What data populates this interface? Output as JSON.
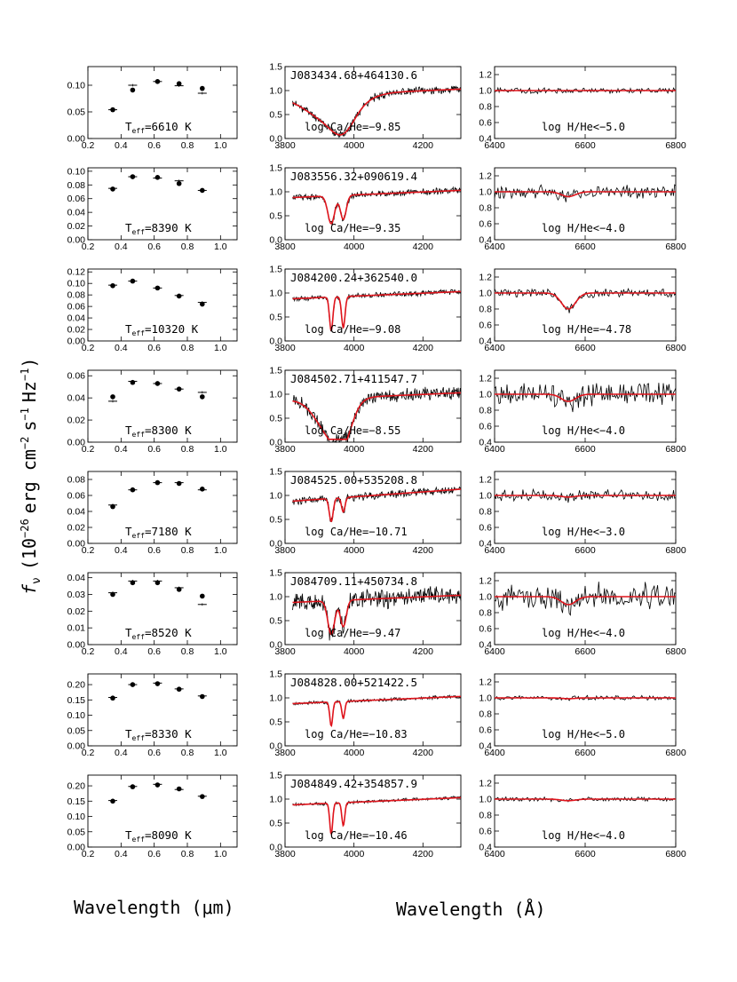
{
  "figure": {
    "ylabel_main": "f",
    "ylabel_sub": "ν",
    "ylabel_rest": "(10",
    "ylabel_exp1": "−26",
    "ylabel_mid1": "erg cm",
    "ylabel_exp2": "−2",
    "ylabel_mid2": "s",
    "ylabel_exp3": "−1",
    "ylabel_mid3": "Hz",
    "ylabel_exp4": "−1",
    "ylabel_end": ")",
    "xlabel_left": "Wavelength (μm)",
    "xlabel_right": "Wavelength (Å)",
    "series_color": "#000000",
    "model_color": "#e0141c"
  },
  "chart_data": [
    {
      "type": "scatter",
      "panel": "photometry",
      "label_prefix": "T",
      "label_sub": "eff",
      "label_value": "=6610 K",
      "x": [
        0.35,
        0.47,
        0.62,
        0.75,
        0.89
      ],
      "y_obs": [
        0.054,
        0.091,
        0.107,
        0.103,
        0.094
      ],
      "y_model": [
        0.054,
        0.1,
        0.107,
        0.099,
        0.085
      ],
      "xlim": [
        0.2,
        1.1
      ],
      "ylim": [
        0.0,
        0.135
      ],
      "xticks": [
        "0.2",
        "0.4",
        "0.6",
        "0.8",
        "1.0"
      ],
      "xtick_vals": [
        0.2,
        0.4,
        0.6,
        0.8,
        1.0
      ],
      "yticks": [
        "0.00",
        "0.05",
        "0.10"
      ],
      "ytick_vals": [
        0.0,
        0.05,
        0.1
      ]
    },
    {
      "type": "line",
      "panel": "calcium",
      "title": "J083434.68+464130.6",
      "label": "log Ca/He=−9.85",
      "xlim": [
        3800,
        4310
      ],
      "ylim": [
        0.0,
        1.5
      ],
      "xticks": [
        "3800",
        "4000",
        "4200"
      ],
      "xtick_vals": [
        3800,
        4000,
        4200
      ],
      "yticks": [
        "0.0",
        "0.5",
        "1.0",
        "1.5"
      ],
      "ytick_vals": [
        0,
        0.5,
        1.0,
        1.5
      ],
      "lines": [
        [
          3934,
          0.55,
          95
        ],
        [
          3969,
          0.35,
          45
        ]
      ],
      "noise": 0.06,
      "blend": true,
      "seed": 11
    },
    {
      "type": "line",
      "panel": "hydrogen",
      "label": "log H/He<−5.0",
      "xlim": [
        6400,
        6800
      ],
      "ylim": [
        0.4,
        1.3
      ],
      "xticks": [
        "6400",
        "6600",
        "6800"
      ],
      "xtick_vals": [
        6400,
        6600,
        6800
      ],
      "yticks": [
        "0.4",
        "0.6",
        "0.8",
        "1.0",
        "1.2"
      ],
      "ytick_vals": [
        0.4,
        0.6,
        0.8,
        1.0,
        1.2
      ],
      "halpha": 0.0,
      "noise": 0.025,
      "seed": 21
    },
    {
      "type": "scatter",
      "panel": "photometry",
      "label_prefix": "T",
      "label_sub": "eff",
      "label_value": "=8390 K",
      "x": [
        0.35,
        0.47,
        0.62,
        0.75,
        0.89
      ],
      "y_obs": [
        0.074,
        0.092,
        0.091,
        0.082,
        0.072
      ],
      "y_model": [
        0.075,
        0.092,
        0.09,
        0.086,
        0.072
      ],
      "xlim": [
        0.2,
        1.1
      ],
      "ylim": [
        0.0,
        0.105
      ],
      "xticks": [
        "0.2",
        "0.4",
        "0.6",
        "0.8",
        "1.0"
      ],
      "xtick_vals": [
        0.2,
        0.4,
        0.6,
        0.8,
        1.0
      ],
      "yticks": [
        "0.00",
        "0.02",
        "0.04",
        "0.06",
        "0.08",
        "0.10"
      ],
      "ytick_vals": [
        0,
        0.02,
        0.04,
        0.06,
        0.08,
        0.1
      ]
    },
    {
      "type": "line",
      "panel": "calcium",
      "title": "J083556.32+090619.4",
      "label": "log Ca/He=−9.35",
      "xlim": [
        3800,
        4310
      ],
      "ylim": [
        0.0,
        1.5
      ],
      "xticks": [
        "3800",
        "4000",
        "4200"
      ],
      "xtick_vals": [
        3800,
        4000,
        4200
      ],
      "yticks": [
        "0.0",
        "0.5",
        "1.0",
        "1.5"
      ],
      "ytick_vals": [
        0,
        0.5,
        1.0,
        1.5
      ],
      "lines": [
        [
          3934,
          0.58,
          14
        ],
        [
          3969,
          0.5,
          12
        ]
      ],
      "noise": 0.05,
      "blend": false,
      "seed": 12
    },
    {
      "type": "line",
      "panel": "hydrogen",
      "label": "log H/He<−4.0",
      "xlim": [
        6400,
        6800
      ],
      "ylim": [
        0.4,
        1.3
      ],
      "xticks": [
        "6400",
        "6600",
        "6800"
      ],
      "xtick_vals": [
        6400,
        6600,
        6800
      ],
      "yticks": [
        "0.4",
        "0.6",
        "0.8",
        "1.0",
        "1.2"
      ],
      "ytick_vals": [
        0.4,
        0.6,
        0.8,
        1.0,
        1.2
      ],
      "halpha": 0.06,
      "noise": 0.06,
      "seed": 22
    },
    {
      "type": "scatter",
      "panel": "photometry",
      "label_prefix": "T",
      "label_sub": "eff",
      "label_value": "=10320 K",
      "x": [
        0.35,
        0.47,
        0.62,
        0.75,
        0.89
      ],
      "y_obs": [
        0.096,
        0.104,
        0.092,
        0.078,
        0.064
      ],
      "y_model": [
        0.097,
        0.104,
        0.092,
        0.079,
        0.067
      ],
      "xlim": [
        0.2,
        1.1
      ],
      "ylim": [
        0.0,
        0.125
      ],
      "xticks": [
        "0.2",
        "0.4",
        "0.6",
        "0.8",
        "1.0"
      ],
      "xtick_vals": [
        0.2,
        0.4,
        0.6,
        0.8,
        1.0
      ],
      "yticks": [
        "0.00",
        "0.02",
        "0.04",
        "0.06",
        "0.08",
        "0.10",
        "0.12"
      ],
      "ytick_vals": [
        0,
        0.02,
        0.04,
        0.06,
        0.08,
        0.1,
        0.12
      ]
    },
    {
      "type": "line",
      "panel": "calcium",
      "title": "J084200.24+362540.0",
      "label": "log Ca/He=−9.08",
      "xlim": [
        3800,
        4310
      ],
      "ylim": [
        0.0,
        1.5
      ],
      "xticks": [
        "3800",
        "4000",
        "4200"
      ],
      "xtick_vals": [
        3800,
        4000,
        4200
      ],
      "yticks": [
        "0.0",
        "0.5",
        "1.0",
        "1.5"
      ],
      "ytick_vals": [
        0,
        0.5,
        1.0,
        1.5
      ],
      "lines": [
        [
          3934,
          0.7,
          7
        ],
        [
          3969,
          0.65,
          7
        ]
      ],
      "noise": 0.04,
      "blend": false,
      "seed": 13
    },
    {
      "type": "line",
      "panel": "hydrogen",
      "label": "log H/He=−4.78",
      "xlim": [
        6400,
        6800
      ],
      "ylim": [
        0.4,
        1.3
      ],
      "xticks": [
        "6400",
        "6600",
        "6800"
      ],
      "xtick_vals": [
        6400,
        6600,
        6800
      ],
      "yticks": [
        "0.4",
        "0.6",
        "0.8",
        "1.0",
        "1.2"
      ],
      "ytick_vals": [
        0.4,
        0.6,
        0.8,
        1.0,
        1.2
      ],
      "halpha": 0.2,
      "noise": 0.04,
      "seed": 23
    },
    {
      "type": "scatter",
      "panel": "photometry",
      "label_prefix": "T",
      "label_sub": "eff",
      "label_value": "=8300 K",
      "x": [
        0.35,
        0.47,
        0.62,
        0.75,
        0.89
      ],
      "y_obs": [
        0.041,
        0.054,
        0.053,
        0.048,
        0.041
      ],
      "y_model": [
        0.037,
        0.055,
        0.053,
        0.048,
        0.045
      ],
      "xlim": [
        0.2,
        1.1
      ],
      "ylim": [
        0.0,
        0.065
      ],
      "xticks": [
        "0.2",
        "0.4",
        "0.6",
        "0.8",
        "1.0"
      ],
      "xtick_vals": [
        0.2,
        0.4,
        0.6,
        0.8,
        1.0
      ],
      "yticks": [
        "0.00",
        "0.02",
        "0.04",
        "0.06"
      ],
      "ytick_vals": [
        0,
        0.02,
        0.04,
        0.06
      ]
    },
    {
      "type": "line",
      "panel": "calcium",
      "title": "J084502.71+411547.7",
      "label": "log Ca/He=−8.55",
      "xlim": [
        3800,
        4310
      ],
      "ylim": [
        0.0,
        1.5
      ],
      "xticks": [
        "3800",
        "4000",
        "4200"
      ],
      "xtick_vals": [
        3800,
        4000,
        4200
      ],
      "yticks": [
        "0.0",
        "0.5",
        "1.0",
        "1.5"
      ],
      "ytick_vals": [
        0,
        0.5,
        1.0,
        1.5
      ],
      "lines": [
        [
          3934,
          0.75,
          60
        ],
        [
          3969,
          0.5,
          35
        ]
      ],
      "noise": 0.1,
      "blend": true,
      "seed": 14
    },
    {
      "type": "line",
      "panel": "hydrogen",
      "label": "log H/He<−4.0",
      "xlim": [
        6400,
        6800
      ],
      "ylim": [
        0.4,
        1.3
      ],
      "xticks": [
        "6400",
        "6600",
        "6800"
      ],
      "xtick_vals": [
        6400,
        6600,
        6800
      ],
      "yticks": [
        "0.4",
        "0.6",
        "0.8",
        "1.0",
        "1.2"
      ],
      "ytick_vals": [
        0.4,
        0.6,
        0.8,
        1.0,
        1.2
      ],
      "halpha": 0.09,
      "noise": 0.1,
      "seed": 24
    },
    {
      "type": "scatter",
      "panel": "photometry",
      "label_prefix": "T",
      "label_sub": "eff",
      "label_value": "=7180 K",
      "x": [
        0.35,
        0.47,
        0.62,
        0.75,
        0.89
      ],
      "y_obs": [
        0.046,
        0.067,
        0.076,
        0.075,
        0.068
      ],
      "y_model": [
        0.048,
        0.067,
        0.076,
        0.076,
        0.067
      ],
      "xlim": [
        0.2,
        1.1
      ],
      "ylim": [
        0.0,
        0.09
      ],
      "xticks": [
        "0.2",
        "0.4",
        "0.6",
        "0.8",
        "1.0"
      ],
      "xtick_vals": [
        0.2,
        0.4,
        0.6,
        0.8,
        1.0
      ],
      "yticks": [
        "0.00",
        "0.02",
        "0.04",
        "0.06",
        "0.08"
      ],
      "ytick_vals": [
        0,
        0.02,
        0.04,
        0.06,
        0.08
      ]
    },
    {
      "type": "line",
      "panel": "calcium",
      "title": "J084525.00+535208.8",
      "label": "log Ca/He=−10.71",
      "xlim": [
        3800,
        4310
      ],
      "ylim": [
        0.0,
        1.5
      ],
      "xticks": [
        "3800",
        "4000",
        "4200"
      ],
      "xtick_vals": [
        3800,
        4000,
        4200
      ],
      "yticks": [
        "0.0",
        "0.5",
        "1.0",
        "1.5"
      ],
      "ytick_vals": [
        0,
        0.5,
        1.0,
        1.5
      ],
      "lines": [
        [
          3934,
          0.48,
          8
        ],
        [
          3969,
          0.3,
          7
        ]
      ],
      "noise": 0.06,
      "blend": false,
      "seed": 15,
      "tilt": 0.25
    },
    {
      "type": "line",
      "panel": "hydrogen",
      "label": "log H/He<−3.0",
      "xlim": [
        6400,
        6800
      ],
      "ylim": [
        0.4,
        1.3
      ],
      "xticks": [
        "6400",
        "6600",
        "6800"
      ],
      "xtick_vals": [
        6400,
        6600,
        6800
      ],
      "yticks": [
        "0.4",
        "0.6",
        "0.8",
        "1.0",
        "1.2"
      ],
      "ytick_vals": [
        0.4,
        0.6,
        0.8,
        1.0,
        1.2
      ],
      "halpha": 0.02,
      "noise": 0.05,
      "seed": 25
    },
    {
      "type": "scatter",
      "panel": "photometry",
      "label_prefix": "T",
      "label_sub": "eff",
      "label_value": "=8520 K",
      "x": [
        0.35,
        0.47,
        0.62,
        0.75,
        0.89
      ],
      "y_obs": [
        0.03,
        0.037,
        0.037,
        0.033,
        0.029
      ],
      "y_model": [
        0.031,
        0.038,
        0.038,
        0.034,
        0.024
      ],
      "xlim": [
        0.2,
        1.1
      ],
      "ylim": [
        0.0,
        0.043
      ],
      "xticks": [
        "0.2",
        "0.4",
        "0.6",
        "0.8",
        "1.0"
      ],
      "xtick_vals": [
        0.2,
        0.4,
        0.6,
        0.8,
        1.0
      ],
      "yticks": [
        "0.00",
        "0.01",
        "0.02",
        "0.03",
        "0.04"
      ],
      "ytick_vals": [
        0,
        0.01,
        0.02,
        0.03,
        0.04
      ]
    },
    {
      "type": "line",
      "panel": "calcium",
      "title": "J084709.11+450734.8",
      "label": "log Ca/He=−9.47",
      "xlim": [
        3800,
        4310
      ],
      "ylim": [
        0.0,
        1.5
      ],
      "xticks": [
        "3800",
        "4000",
        "4200"
      ],
      "xtick_vals": [
        3800,
        4000,
        4200
      ],
      "yticks": [
        "0.0",
        "0.5",
        "1.0",
        "1.5"
      ],
      "ytick_vals": [
        0,
        0.5,
        1.0,
        1.5
      ],
      "lines": [
        [
          3934,
          0.7,
          14
        ],
        [
          3969,
          0.55,
          12
        ]
      ],
      "noise": 0.14,
      "blend": false,
      "seed": 16
    },
    {
      "type": "line",
      "panel": "hydrogen",
      "label": "log H/He<−4.0",
      "xlim": [
        6400,
        6800
      ],
      "ylim": [
        0.4,
        1.3
      ],
      "xticks": [
        "6400",
        "6600",
        "6800"
      ],
      "xtick_vals": [
        6400,
        6600,
        6800
      ],
      "yticks": [
        "0.4",
        "0.6",
        "0.8",
        "1.0",
        "1.2"
      ],
      "ytick_vals": [
        0.4,
        0.6,
        0.8,
        1.0,
        1.2
      ],
      "halpha": 0.1,
      "noise": 0.12,
      "seed": 26
    },
    {
      "type": "scatter",
      "panel": "photometry",
      "label_prefix": "T",
      "label_sub": "eff",
      "label_value": "=8330 K",
      "x": [
        0.35,
        0.47,
        0.62,
        0.75,
        0.89
      ],
      "y_obs": [
        0.156,
        0.2,
        0.203,
        0.185,
        0.161
      ],
      "y_model": [
        0.158,
        0.2,
        0.205,
        0.186,
        0.163
      ],
      "xlim": [
        0.2,
        1.1
      ],
      "ylim": [
        0.0,
        0.235
      ],
      "xticks": [
        "0.2",
        "0.4",
        "0.6",
        "0.8",
        "1.0"
      ],
      "xtick_vals": [
        0.2,
        0.4,
        0.6,
        0.8,
        1.0
      ],
      "yticks": [
        "0.00",
        "0.05",
        "0.10",
        "0.15",
        "0.20"
      ],
      "ytick_vals": [
        0,
        0.05,
        0.1,
        0.15,
        0.2
      ]
    },
    {
      "type": "line",
      "panel": "calcium",
      "title": "J084828.00+521422.5",
      "label": "log Ca/He=−10.83",
      "xlim": [
        3800,
        4310
      ],
      "ylim": [
        0.0,
        1.5
      ],
      "xticks": [
        "3800",
        "4000",
        "4200"
      ],
      "xtick_vals": [
        3800,
        4000,
        4200
      ],
      "yticks": [
        "0.0",
        "0.5",
        "1.0",
        "1.5"
      ],
      "ytick_vals": [
        0,
        0.5,
        1.0,
        1.5
      ],
      "lines": [
        [
          3934,
          0.5,
          6
        ],
        [
          3969,
          0.35,
          6
        ]
      ],
      "noise": 0.025,
      "blend": false,
      "seed": 17
    },
    {
      "type": "line",
      "panel": "hydrogen",
      "label": "log H/He<−5.0",
      "xlim": [
        6400,
        6800
      ],
      "ylim": [
        0.4,
        1.3
      ],
      "xticks": [
        "6400",
        "6600",
        "6800"
      ],
      "xtick_vals": [
        6400,
        6600,
        6800
      ],
      "yticks": [
        "0.4",
        "0.6",
        "0.8",
        "1.0",
        "1.2"
      ],
      "ytick_vals": [
        0.4,
        0.6,
        0.8,
        1.0,
        1.2
      ],
      "halpha": 0.01,
      "noise": 0.02,
      "seed": 27
    },
    {
      "type": "scatter",
      "panel": "photometry",
      "label_prefix": "T",
      "label_sub": "eff",
      "label_value": "=8090 K",
      "x": [
        0.35,
        0.47,
        0.62,
        0.75,
        0.89
      ],
      "y_obs": [
        0.15,
        0.197,
        0.203,
        0.19,
        0.165
      ],
      "y_model": [
        0.152,
        0.198,
        0.205,
        0.188,
        0.166
      ],
      "xlim": [
        0.2,
        1.1
      ],
      "ylim": [
        0.0,
        0.235
      ],
      "xticks": [
        "0.2",
        "0.4",
        "0.6",
        "0.8",
        "1.0"
      ],
      "xtick_vals": [
        0.2,
        0.4,
        0.6,
        0.8,
        1.0
      ],
      "yticks": [
        "0.00",
        "0.05",
        "0.10",
        "0.15",
        "0.20"
      ],
      "ytick_vals": [
        0,
        0.05,
        0.1,
        0.15,
        0.2
      ]
    },
    {
      "type": "line",
      "panel": "calcium",
      "title": "J084849.42+354857.9",
      "label": "log Ca/He=−10.46",
      "xlim": [
        3800,
        4310
      ],
      "ylim": [
        0.0,
        1.5
      ],
      "xticks": [
        "3800",
        "4000",
        "4200"
      ],
      "xtick_vals": [
        3800,
        4000,
        4200
      ],
      "yticks": [
        "0.0",
        "0.5",
        "1.0",
        "1.5"
      ],
      "ytick_vals": [
        0,
        0.5,
        1.0,
        1.5
      ],
      "lines": [
        [
          3934,
          0.65,
          6
        ],
        [
          3969,
          0.48,
          6
        ]
      ],
      "noise": 0.025,
      "blend": false,
      "seed": 18
    },
    {
      "type": "line",
      "panel": "hydrogen",
      "label": "log H/He<−4.0",
      "xlim": [
        6400,
        6800
      ],
      "ylim": [
        0.4,
        1.3
      ],
      "xticks": [
        "6400",
        "6600",
        "6800"
      ],
      "xtick_vals": [
        6400,
        6600,
        6800
      ],
      "yticks": [
        "0.4",
        "0.6",
        "0.8",
        "1.0",
        "1.2"
      ],
      "ytick_vals": [
        0.4,
        0.6,
        0.8,
        1.0,
        1.2
      ],
      "halpha": 0.02,
      "noise": 0.02,
      "seed": 28
    }
  ]
}
